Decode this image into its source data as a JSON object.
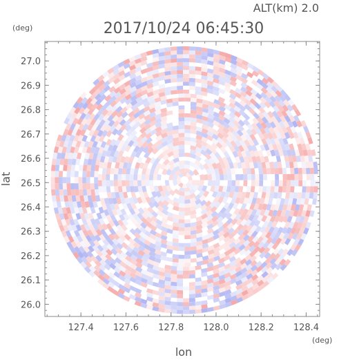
{
  "header": {
    "altitude_label": "ALT(km) 2.0",
    "timestamp": "2017/10/24 06:45:30"
  },
  "chart_data": {
    "type": "heatmap",
    "title": "2017/10/24 06:45:30",
    "subtitle": "ALT(km) 2.0",
    "xlabel": "lon",
    "ylabel": "lat",
    "x_unit": "(deg)",
    "y_unit": "(deg)",
    "xlim": [
      127.24,
      128.46
    ],
    "ylim": [
      25.95,
      27.08
    ],
    "x_ticks": [
      127.4,
      127.6,
      127.8,
      128.0,
      128.2,
      128.4
    ],
    "x_tick_labels": [
      "127.4",
      "127.6",
      "127.8",
      "128.0",
      "128.2",
      "128.4"
    ],
    "y_ticks": [
      26.0,
      26.1,
      26.2,
      26.3,
      26.4,
      26.5,
      26.6,
      26.7,
      26.8,
      26.9,
      27.0
    ],
    "y_tick_labels": [
      "26.0",
      "26.1",
      "26.2",
      "26.3",
      "26.4",
      "26.5",
      "26.6",
      "26.7",
      "26.8",
      "26.9",
      "27.0"
    ],
    "radar_center": {
      "lon": 127.86,
      "lat": 26.51
    },
    "radar_radius_deg_lat": 0.55,
    "colors": {
      "positive": "#f4a6a6",
      "negative": "#a9aef0",
      "neutral": "#ffffff"
    },
    "grid": false,
    "legend": "none"
  }
}
